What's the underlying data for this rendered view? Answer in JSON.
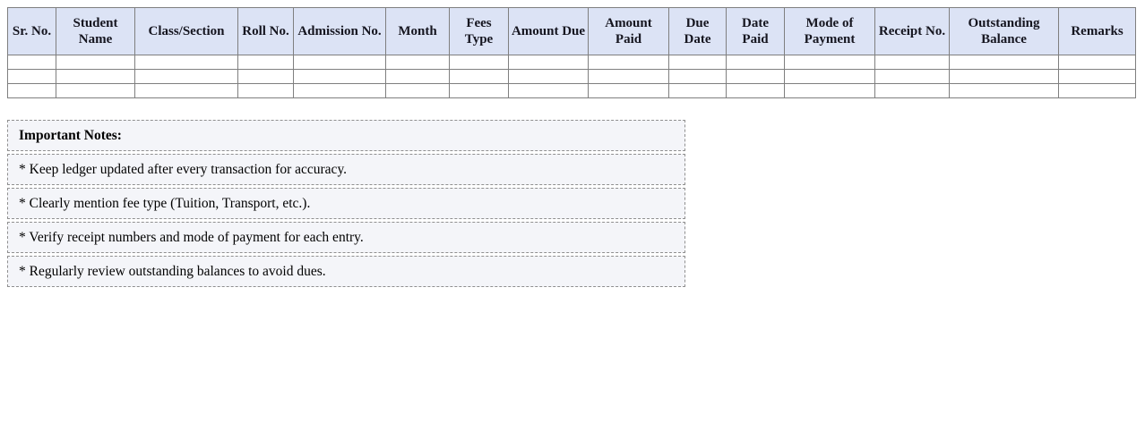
{
  "colors": {
    "header_bg": "#dce3f5",
    "table_border": "#7f7f7f",
    "notes_bg": "#f4f5f9",
    "notes_border": "#8f8f8f",
    "header_text": "#15151f"
  },
  "table": {
    "columns": [
      {
        "label": "Sr. No."
      },
      {
        "label": "Student Name"
      },
      {
        "label": "Class/Section"
      },
      {
        "label": "Roll No."
      },
      {
        "label": "Admission No."
      },
      {
        "label": "Month"
      },
      {
        "label": "Fees Type"
      },
      {
        "label": "Amount Due"
      },
      {
        "label": "Amount Paid"
      },
      {
        "label": "Due Date"
      },
      {
        "label": "Date Paid"
      },
      {
        "label": "Mode of Payment"
      },
      {
        "label": "Receipt No."
      },
      {
        "label": "Outstanding Balance"
      },
      {
        "label": "Remarks"
      }
    ],
    "rows": [
      [
        "",
        "",
        "",
        "",
        "",
        "",
        "",
        "",
        "",
        "",
        "",
        "",
        "",
        "",
        ""
      ],
      [
        "",
        "",
        "",
        "",
        "",
        "",
        "",
        "",
        "",
        "",
        "",
        "",
        "",
        "",
        ""
      ],
      [
        "",
        "",
        "",
        "",
        "",
        "",
        "",
        "",
        "",
        "",
        "",
        "",
        "",
        "",
        ""
      ]
    ]
  },
  "notes": {
    "title": "Important Notes:",
    "items": [
      "* Keep ledger updated after every transaction for accuracy.",
      "* Clearly mention fee type (Tuition, Transport, etc.).",
      "* Verify receipt numbers and mode of payment for each entry.",
      "* Regularly review outstanding balances to avoid dues."
    ]
  }
}
